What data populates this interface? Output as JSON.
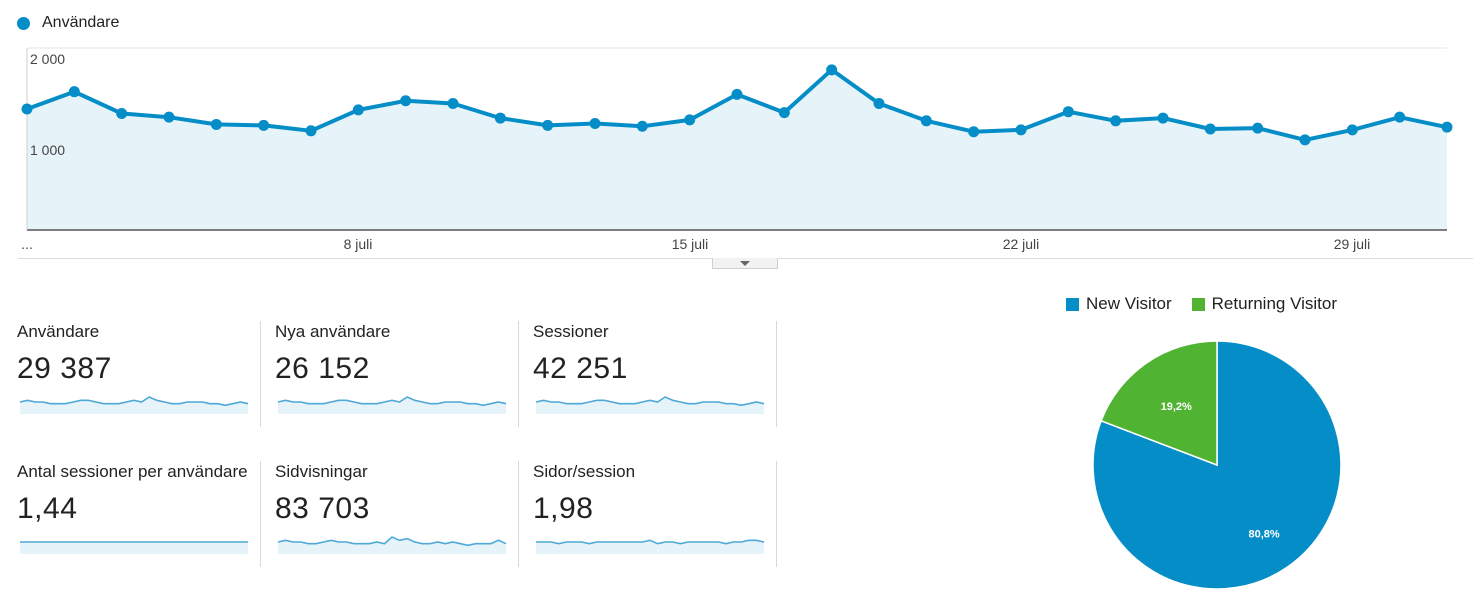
{
  "chart_data": {
    "type": "line",
    "legend": "Användare",
    "color": "#058dc7",
    "fill": "#e6f4fa",
    "ylim": [
      0,
      2000
    ],
    "yticks": [
      {
        "label": "2 000",
        "value": 2000
      },
      {
        "label": "1 000",
        "value": 1000
      }
    ],
    "xticks": [
      {
        "label": "...",
        "index": 0
      },
      {
        "label": "8 juli",
        "index": 7
      },
      {
        "label": "15 juli",
        "index": 14
      },
      {
        "label": "22 juli",
        "index": 21
      },
      {
        "label": "29 juli",
        "index": 28
      }
    ],
    "values": [
      1330,
      1520,
      1280,
      1240,
      1160,
      1150,
      1090,
      1320,
      1420,
      1390,
      1230,
      1150,
      1170,
      1140,
      1210,
      1490,
      1290,
      1760,
      1390,
      1200,
      1080,
      1100,
      1300,
      1200,
      1230,
      1110,
      1120,
      990,
      1100,
      1240,
      1130
    ]
  },
  "metrics": [
    {
      "label": "Användare",
      "value": "29 387",
      "spark": [
        6,
        7,
        6,
        6,
        5,
        5,
        5,
        6,
        7,
        7,
        6,
        5,
        5,
        5,
        6,
        7,
        6,
        9,
        7,
        6,
        5,
        5,
        6,
        6,
        6,
        5,
        5,
        4,
        5,
        6,
        5
      ]
    },
    {
      "label": "Nya användare",
      "value": "26 152",
      "spark": [
        6,
        7,
        6,
        6,
        5,
        5,
        5,
        6,
        7,
        7,
        6,
        5,
        5,
        5,
        6,
        7,
        6,
        9,
        7,
        6,
        5,
        5,
        6,
        6,
        6,
        5,
        5,
        4,
        5,
        6,
        5
      ]
    },
    {
      "label": "Sessioner",
      "value": "42 251",
      "spark": [
        6,
        7,
        6,
        6,
        5,
        5,
        5,
        6,
        7,
        7,
        6,
        5,
        5,
        5,
        6,
        7,
        6,
        9,
        7,
        6,
        5,
        5,
        6,
        6,
        6,
        5,
        5,
        4,
        5,
        6,
        5
      ]
    },
    {
      "label": "Antal sessioner per användare",
      "value": "1,44",
      "spark": [
        6,
        6,
        6,
        6,
        6,
        6,
        6,
        6,
        6,
        6,
        6,
        6,
        6,
        6,
        6,
        6,
        6,
        6,
        6,
        6,
        6,
        6,
        6,
        6,
        6,
        6,
        6,
        6,
        6,
        6,
        6
      ]
    },
    {
      "label": "Sidvisningar",
      "value": "83 703",
      "spark": [
        6,
        7,
        6,
        6,
        5,
        5,
        6,
        7,
        6,
        6,
        5,
        5,
        5,
        6,
        5,
        9,
        7,
        8,
        6,
        5,
        5,
        6,
        5,
        6,
        5,
        4,
        5,
        5,
        5,
        7,
        5
      ]
    },
    {
      "label": "Sidor/session",
      "value": "1,98",
      "spark": [
        6,
        6,
        6,
        5,
        6,
        6,
        6,
        5,
        6,
        6,
        6,
        6,
        6,
        6,
        6,
        7,
        5,
        6,
        6,
        5,
        6,
        6,
        6,
        6,
        6,
        5,
        6,
        6,
        7,
        7,
        6
      ]
    }
  ],
  "pie": {
    "type": "pie",
    "slices": [
      {
        "name": "New Visitor",
        "value": 80.8,
        "label": "80,8%",
        "color": "#058dc7"
      },
      {
        "name": "Returning Visitor",
        "value": 19.2,
        "label": "19,2%",
        "color": "#50b432"
      }
    ]
  }
}
